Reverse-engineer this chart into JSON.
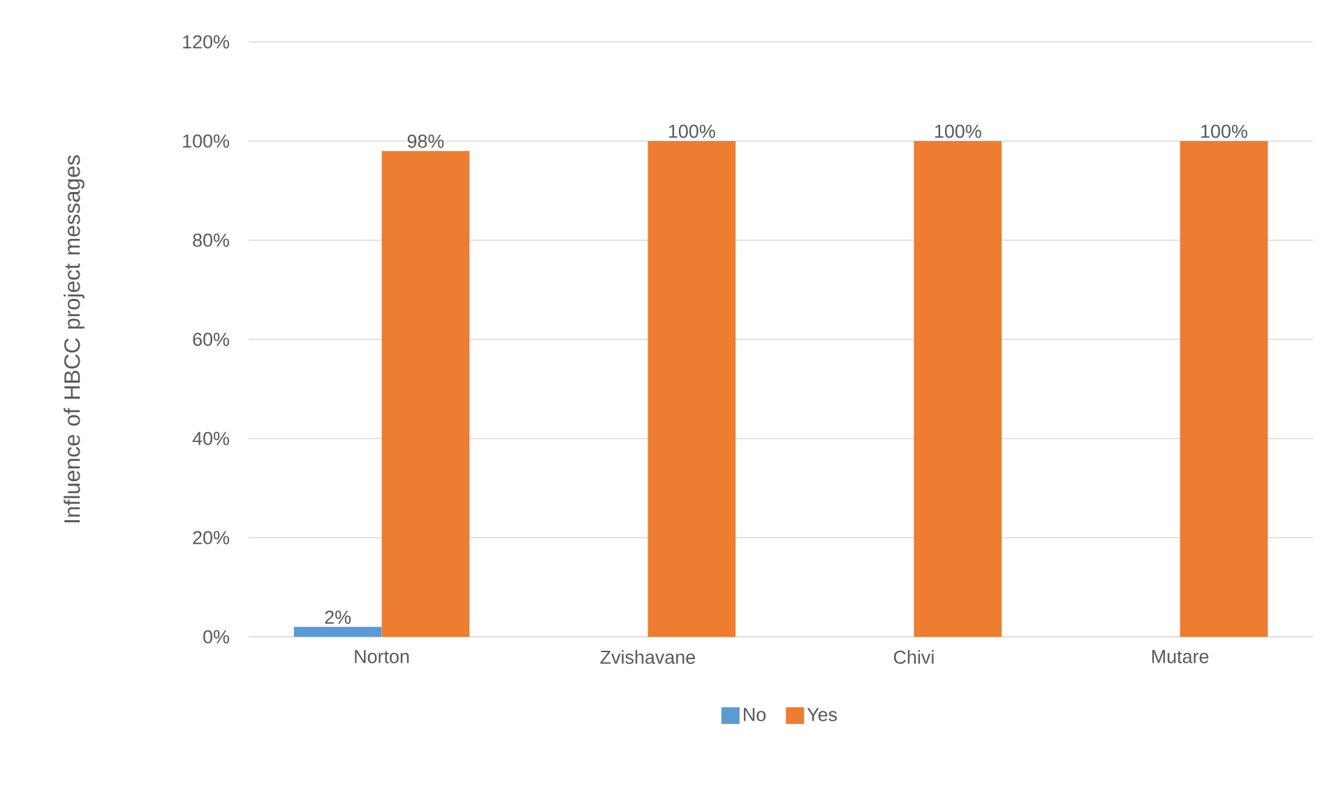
{
  "chart_data": {
    "type": "bar",
    "ylabel": "Influence of HBCC project messages",
    "categories": [
      "Norton",
      "Zvishavane",
      "Chivi",
      "Mutare"
    ],
    "series": [
      {
        "name": "No",
        "color": "#5b9bd5",
        "values": [
          2,
          0,
          0,
          0
        ],
        "value_labels": [
          "2%",
          null,
          null,
          null
        ]
      },
      {
        "name": "Yes",
        "color": "#ed7d31",
        "values": [
          98,
          100,
          100,
          100
        ],
        "value_labels": [
          "98%",
          "100%",
          "100%",
          "100%"
        ]
      }
    ],
    "ylim": [
      0,
      120
    ],
    "yticks": [
      {
        "value": 0,
        "label": "0%"
      },
      {
        "value": 20,
        "label": "20%"
      },
      {
        "value": 40,
        "label": "40%"
      },
      {
        "value": 60,
        "label": "60%"
      },
      {
        "value": 80,
        "label": "80%"
      },
      {
        "value": 100,
        "label": "100%"
      },
      {
        "value": 120,
        "label": "120%"
      }
    ],
    "grid": "y",
    "legend": "bottom"
  }
}
